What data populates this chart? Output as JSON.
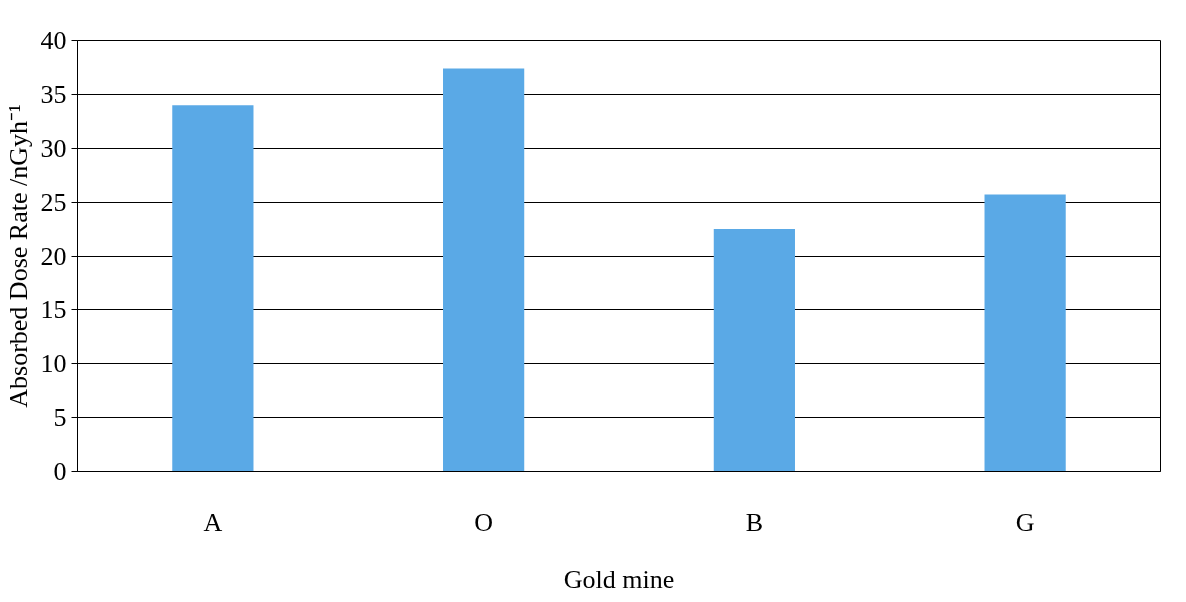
{
  "chart_data": {
    "type": "bar",
    "xlabel": "Gold mine",
    "ylabel": "Absorbed Dose Rate /nGyh⁻¹",
    "categories": [
      "A",
      "O",
      "B",
      "G"
    ],
    "values": [
      34.0,
      37.4,
      22.5,
      25.7
    ],
    "color": "#5aa9e6",
    "ylim": [
      0,
      40
    ],
    "yticks": [
      0,
      5,
      10,
      15,
      20,
      25,
      30,
      35,
      40
    ],
    "grid": "y"
  }
}
